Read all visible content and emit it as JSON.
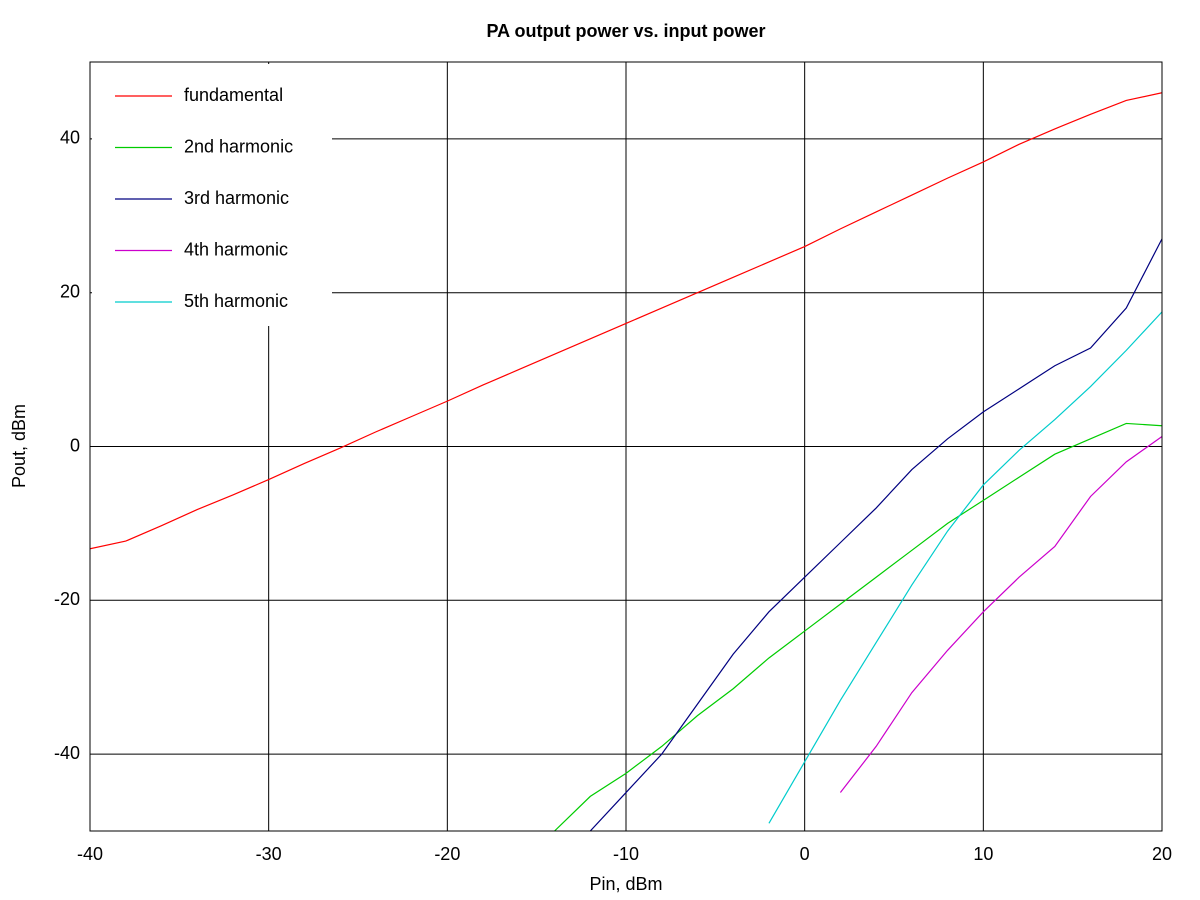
{
  "chart_data": {
    "type": "line",
    "title": "PA output power vs. input power",
    "x_label": "Pin, dBm",
    "y_label": "Pout, dBm",
    "x": [
      -40,
      -38,
      -36,
      -34,
      -32,
      -30,
      -28,
      -26,
      -24,
      -22,
      -20,
      -18,
      -16,
      -14,
      -12,
      -10,
      -8,
      -6,
      -4,
      -2,
      0,
      2,
      4,
      6,
      8,
      10,
      12,
      14,
      16,
      18,
      20
    ],
    "series": [
      {
        "name": "fundamental",
        "color": "#ff0000",
        "values": [
          -13.3,
          -12.3,
          -10.3,
          -8.2,
          -6.3,
          -4.3,
          -2.2,
          -0.2,
          1.9,
          3.9,
          5.9,
          8,
          10,
          12,
          14,
          16,
          18,
          20,
          22,
          24,
          26,
          28.3,
          30.5,
          32.7,
          34.9,
          37,
          39.3,
          41.3,
          43.2,
          45,
          46
        ]
      },
      {
        "name": "2nd harmonic",
        "color": "#00cc00",
        "values": [
          null,
          null,
          null,
          null,
          null,
          null,
          null,
          null,
          null,
          null,
          null,
          null,
          null,
          -50,
          -45.5,
          -42.5,
          -39,
          -35,
          -31.5,
          -27.5,
          -24,
          -20.5,
          -17,
          -13.5,
          -10,
          -7,
          -4,
          -1,
          1,
          3,
          2.7
        ]
      },
      {
        "name": "3rd harmonic",
        "color": "#000080",
        "values": [
          null,
          null,
          null,
          null,
          null,
          null,
          null,
          null,
          null,
          null,
          null,
          null,
          null,
          null,
          -50,
          -45,
          -40,
          -33.5,
          -27,
          -21.5,
          -17,
          -12.5,
          -8,
          -3,
          1,
          4.5,
          7.5,
          10.5,
          12.8,
          18,
          27
        ]
      },
      {
        "name": "4th harmonic",
        "color": "#cc00cc",
        "values": [
          null,
          null,
          null,
          null,
          null,
          null,
          null,
          null,
          null,
          null,
          null,
          null,
          null,
          null,
          null,
          null,
          null,
          null,
          null,
          null,
          null,
          -45,
          -39,
          -32,
          -26.5,
          -21.5,
          -17,
          -13,
          -6.5,
          -2,
          1.3
        ]
      },
      {
        "name": "5th harmonic",
        "color": "#00cccc",
        "values": [
          null,
          null,
          null,
          null,
          null,
          null,
          null,
          null,
          null,
          null,
          null,
          null,
          null,
          null,
          null,
          null,
          null,
          null,
          null,
          -49,
          -41,
          -33,
          -25.5,
          -18,
          -11,
          -5,
          -0.5,
          3.5,
          7.8,
          12.5,
          17.5
        ]
      }
    ],
    "xlim": [
      -40,
      20
    ],
    "xticks": [
      -40,
      -30,
      -20,
      -10,
      0,
      10,
      20
    ],
    "ylim": [
      -50,
      50
    ],
    "yticks": [
      -40,
      -20,
      0,
      20,
      40
    ],
    "grid": true,
    "legend": "upper-left"
  }
}
